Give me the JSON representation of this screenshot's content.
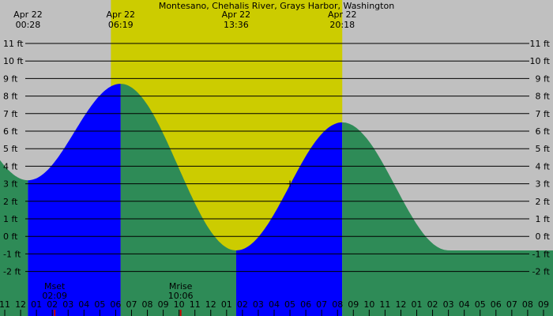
{
  "chart_data": {
    "type": "area",
    "title": "Montesano, Chehalis River, Grays Harbor, Washington",
    "xlabel": "",
    "ylabel": "",
    "unit": "ft",
    "ylim": [
      -3,
      12
    ],
    "grid": true,
    "xrange_hours": [
      -1.3,
      33.6
    ],
    "y_ticks": [
      {
        "value": 11,
        "label": "11 ft"
      },
      {
        "value": 10,
        "label": "10 ft"
      },
      {
        "value": 9,
        "label": "9 ft"
      },
      {
        "value": 8,
        "label": "8 ft"
      },
      {
        "value": 7,
        "label": "7 ft"
      },
      {
        "value": 6,
        "label": "6 ft"
      },
      {
        "value": 5,
        "label": "5 ft"
      },
      {
        "value": 4,
        "label": "4 ft"
      },
      {
        "value": 3,
        "label": "3 ft"
      },
      {
        "value": 2,
        "label": "2 ft"
      },
      {
        "value": 1,
        "label": "1 ft"
      },
      {
        "value": 0,
        "label": "0 ft"
      },
      {
        "value": -1,
        "label": "-1 ft"
      },
      {
        "value": -2,
        "label": "-2 ft"
      }
    ],
    "x_ticks": [
      {
        "hour": -1,
        "label": "11"
      },
      {
        "hour": 0,
        "label": "12"
      },
      {
        "hour": 1,
        "label": "01"
      },
      {
        "hour": 2,
        "label": "02"
      },
      {
        "hour": 3,
        "label": "03"
      },
      {
        "hour": 4,
        "label": "04"
      },
      {
        "hour": 5,
        "label": "05"
      },
      {
        "hour": 6,
        "label": "06"
      },
      {
        "hour": 7,
        "label": "07"
      },
      {
        "hour": 8,
        "label": "08"
      },
      {
        "hour": 9,
        "label": "09"
      },
      {
        "hour": 10,
        "label": "10"
      },
      {
        "hour": 11,
        "label": "11"
      },
      {
        "hour": 12,
        "label": "12"
      },
      {
        "hour": 13,
        "label": "01"
      },
      {
        "hour": 14,
        "label": "02"
      },
      {
        "hour": 15,
        "label": "03"
      },
      {
        "hour": 16,
        "label": "04"
      },
      {
        "hour": 17,
        "label": "05"
      },
      {
        "hour": 18,
        "label": "06"
      },
      {
        "hour": 19,
        "label": "07"
      },
      {
        "hour": 20,
        "label": "08"
      },
      {
        "hour": 21,
        "label": "09"
      },
      {
        "hour": 22,
        "label": "10"
      },
      {
        "hour": 23,
        "label": "11"
      },
      {
        "hour": 24,
        "label": "12"
      },
      {
        "hour": 25,
        "label": "01"
      },
      {
        "hour": 26,
        "label": "02"
      },
      {
        "hour": 27,
        "label": "03"
      },
      {
        "hour": 28,
        "label": "04"
      },
      {
        "hour": 29,
        "label": "05"
      },
      {
        "hour": 30,
        "label": "06"
      },
      {
        "hour": 31,
        "label": "07"
      },
      {
        "hour": 32,
        "label": "08"
      },
      {
        "hour": 33,
        "label": "09"
      }
    ],
    "tide_extremes": [
      {
        "hour": 0.467,
        "height": 3.2,
        "kind": "low",
        "date": "Apr 22",
        "time": "00:28"
      },
      {
        "hour": 6.317,
        "height": 8.7,
        "kind": "high",
        "date": "Apr 22",
        "time": "06:19"
      },
      {
        "hour": 13.6,
        "height": -0.8,
        "kind": "low",
        "date": "Apr 22",
        "time": "13:36"
      },
      {
        "hour": 20.3,
        "height": 6.5,
        "kind": "high",
        "date": "Apr 22",
        "time": "20:18"
      }
    ],
    "daylight": {
      "start_hour": 5.7,
      "end_hour": 20.3
    },
    "moon_events": [
      {
        "label": "Mset",
        "time": "02:09",
        "hour": 2.15
      },
      {
        "label": "Mrise",
        "time": "10:06",
        "hour": 10.1
      }
    ],
    "marker": {
      "hour": 17.0,
      "height": 3.0
    },
    "colors": {
      "night": "#c0c0c0",
      "day": "#cccc00",
      "rising": "#0000ff",
      "falling": "#2e8b57",
      "grid": "#000000",
      "moon_tick": "#cc0000"
    }
  }
}
